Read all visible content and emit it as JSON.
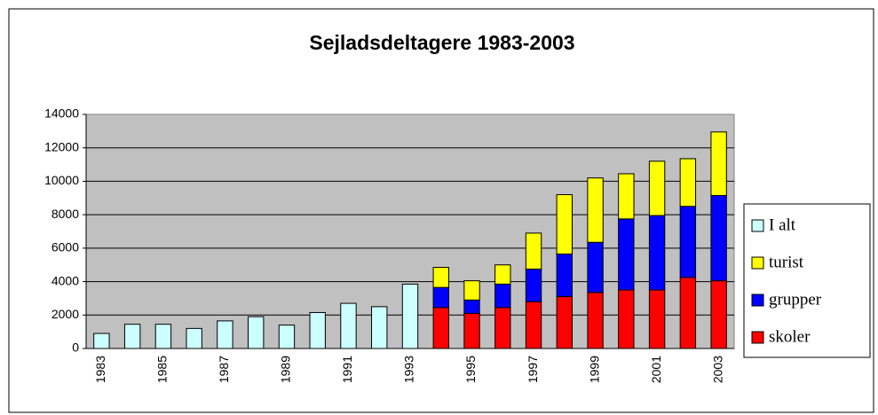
{
  "chart_data": {
    "type": "stacked_bar",
    "title": "Sejladsdeltagere 1983-2003",
    "categories": [
      "1983",
      null,
      "1985",
      null,
      "1987",
      null,
      "1989",
      null,
      "1991",
      null,
      "1993",
      null,
      "1995",
      null,
      "1997",
      null,
      "1999",
      null,
      "2001",
      null,
      "2003"
    ],
    "series": [
      {
        "name": "skoler",
        "color": "#ff0000",
        "values": [
          null,
          null,
          null,
          null,
          null,
          null,
          null,
          null,
          null,
          null,
          null,
          2450,
          2100,
          2450,
          2800,
          3100,
          3350,
          3500,
          3500,
          4250,
          4050
        ]
      },
      {
        "name": "grupper",
        "color": "#0000ff",
        "values": [
          null,
          null,
          null,
          null,
          null,
          null,
          null,
          null,
          null,
          null,
          null,
          1200,
          800,
          1400,
          1950,
          2550,
          3000,
          4250,
          4450,
          4250,
          5100
        ]
      },
      {
        "name": "turist",
        "color": "#ffff00",
        "values": [
          null,
          null,
          null,
          null,
          null,
          null,
          null,
          null,
          null,
          null,
          null,
          1200,
          1150,
          1150,
          2150,
          3550,
          3850,
          2700,
          3250,
          2850,
          3800
        ]
      },
      {
        "name": "I alt",
        "color": "#ccffff",
        "values": [
          900,
          1450,
          1450,
          1200,
          1650,
          1900,
          1400,
          2150,
          2700,
          2500,
          3850,
          null,
          null,
          null,
          null,
          null,
          null,
          null,
          null,
          null,
          null
        ]
      }
    ],
    "ylim": [
      0,
      14000
    ],
    "yticks": [
      0,
      2000,
      4000,
      6000,
      8000,
      10000,
      12000,
      14000
    ],
    "grid": true,
    "legend": "right"
  }
}
